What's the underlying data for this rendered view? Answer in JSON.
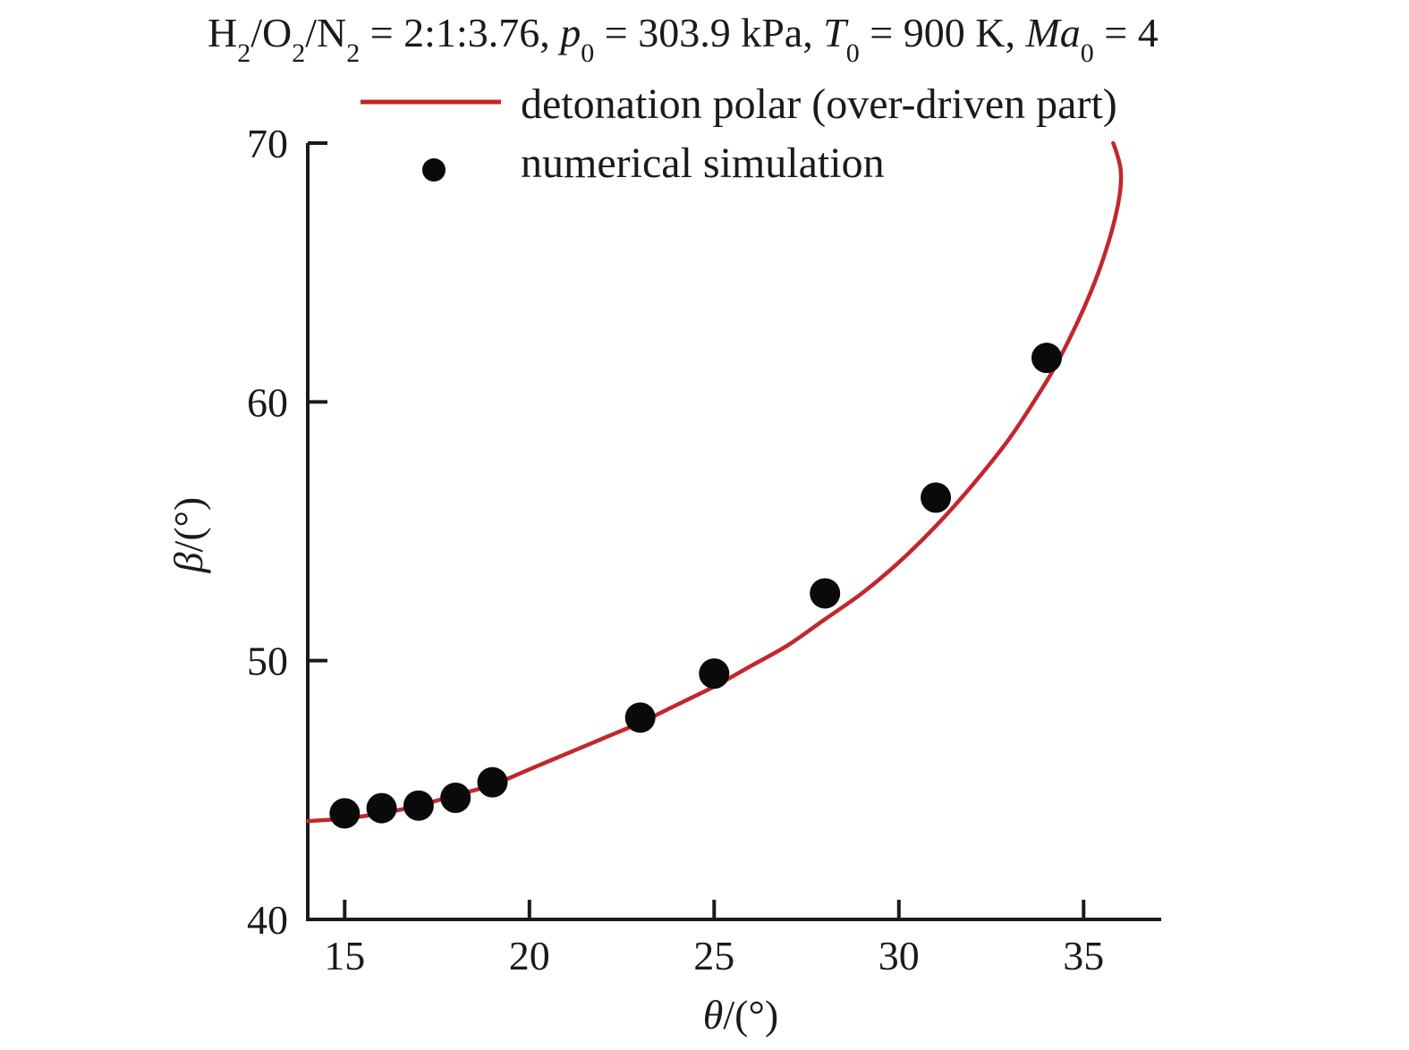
{
  "chart_data": {
    "type": "line",
    "title": "H2/O2/N2 = 2:1:3.76, p0 = 303.9 kPa, T0 = 900 K, Ma0 = 4",
    "title_parts": {
      "h": "H",
      "h_sub": "2",
      "o": "/O",
      "o_sub": "2",
      "n": "/N",
      "n_sub": "2",
      "ratio": " = 2:1:3.76, ",
      "p": "p",
      "p_sub": "0",
      "p_val": " = 303.9 kPa, ",
      "t": "T",
      "t_sub": "0",
      "t_val": " = 900 K, ",
      "ma": "Ma",
      "ma_sub": "0",
      "ma_val": " = 4"
    },
    "xlabel": "θ/(°)",
    "xlabel_parts": {
      "sym": "θ",
      "unit": "/(°)"
    },
    "ylabel": "β/(°)",
    "ylabel_parts": {
      "sym": "β",
      "unit": "/(°)"
    },
    "xlim": [
      14,
      37.1
    ],
    "ylim": [
      40,
      70
    ],
    "xticks": [
      15,
      20,
      25,
      30,
      35
    ],
    "yticks": [
      40,
      50,
      60,
      70
    ],
    "grid": false,
    "legend_position": "top",
    "series": [
      {
        "name": "detonation polar (over-driven part)",
        "kind": "line",
        "color": "#c1272d",
        "x": [
          14.0,
          15.0,
          16.0,
          17.0,
          18.0,
          19.0,
          20.0,
          21.0,
          22.0,
          23.0,
          24.0,
          25.0,
          26.0,
          27.0,
          28.0,
          29.0,
          30.0,
          31.0,
          32.0,
          33.0,
          34.0,
          34.5,
          35.0,
          35.4,
          35.7,
          35.9,
          36.0,
          36.0,
          35.9,
          35.8
        ],
        "y": [
          43.8,
          43.9,
          44.1,
          44.4,
          44.8,
          45.2,
          45.8,
          46.4,
          47.0,
          47.6,
          48.3,
          49.0,
          49.8,
          50.6,
          51.6,
          52.6,
          53.8,
          55.2,
          56.8,
          58.6,
          60.8,
          62.1,
          63.6,
          65.0,
          66.3,
          67.4,
          68.3,
          69.0,
          69.6,
          70.0
        ]
      },
      {
        "name": "numerical simulation",
        "kind": "scatter",
        "color": "#0a0a0a",
        "x": [
          15,
          16,
          17,
          18,
          19,
          23,
          25,
          28,
          31,
          34
        ],
        "y": [
          44.1,
          44.3,
          44.4,
          44.7,
          45.3,
          47.8,
          49.5,
          52.6,
          56.3,
          61.7
        ]
      }
    ]
  }
}
